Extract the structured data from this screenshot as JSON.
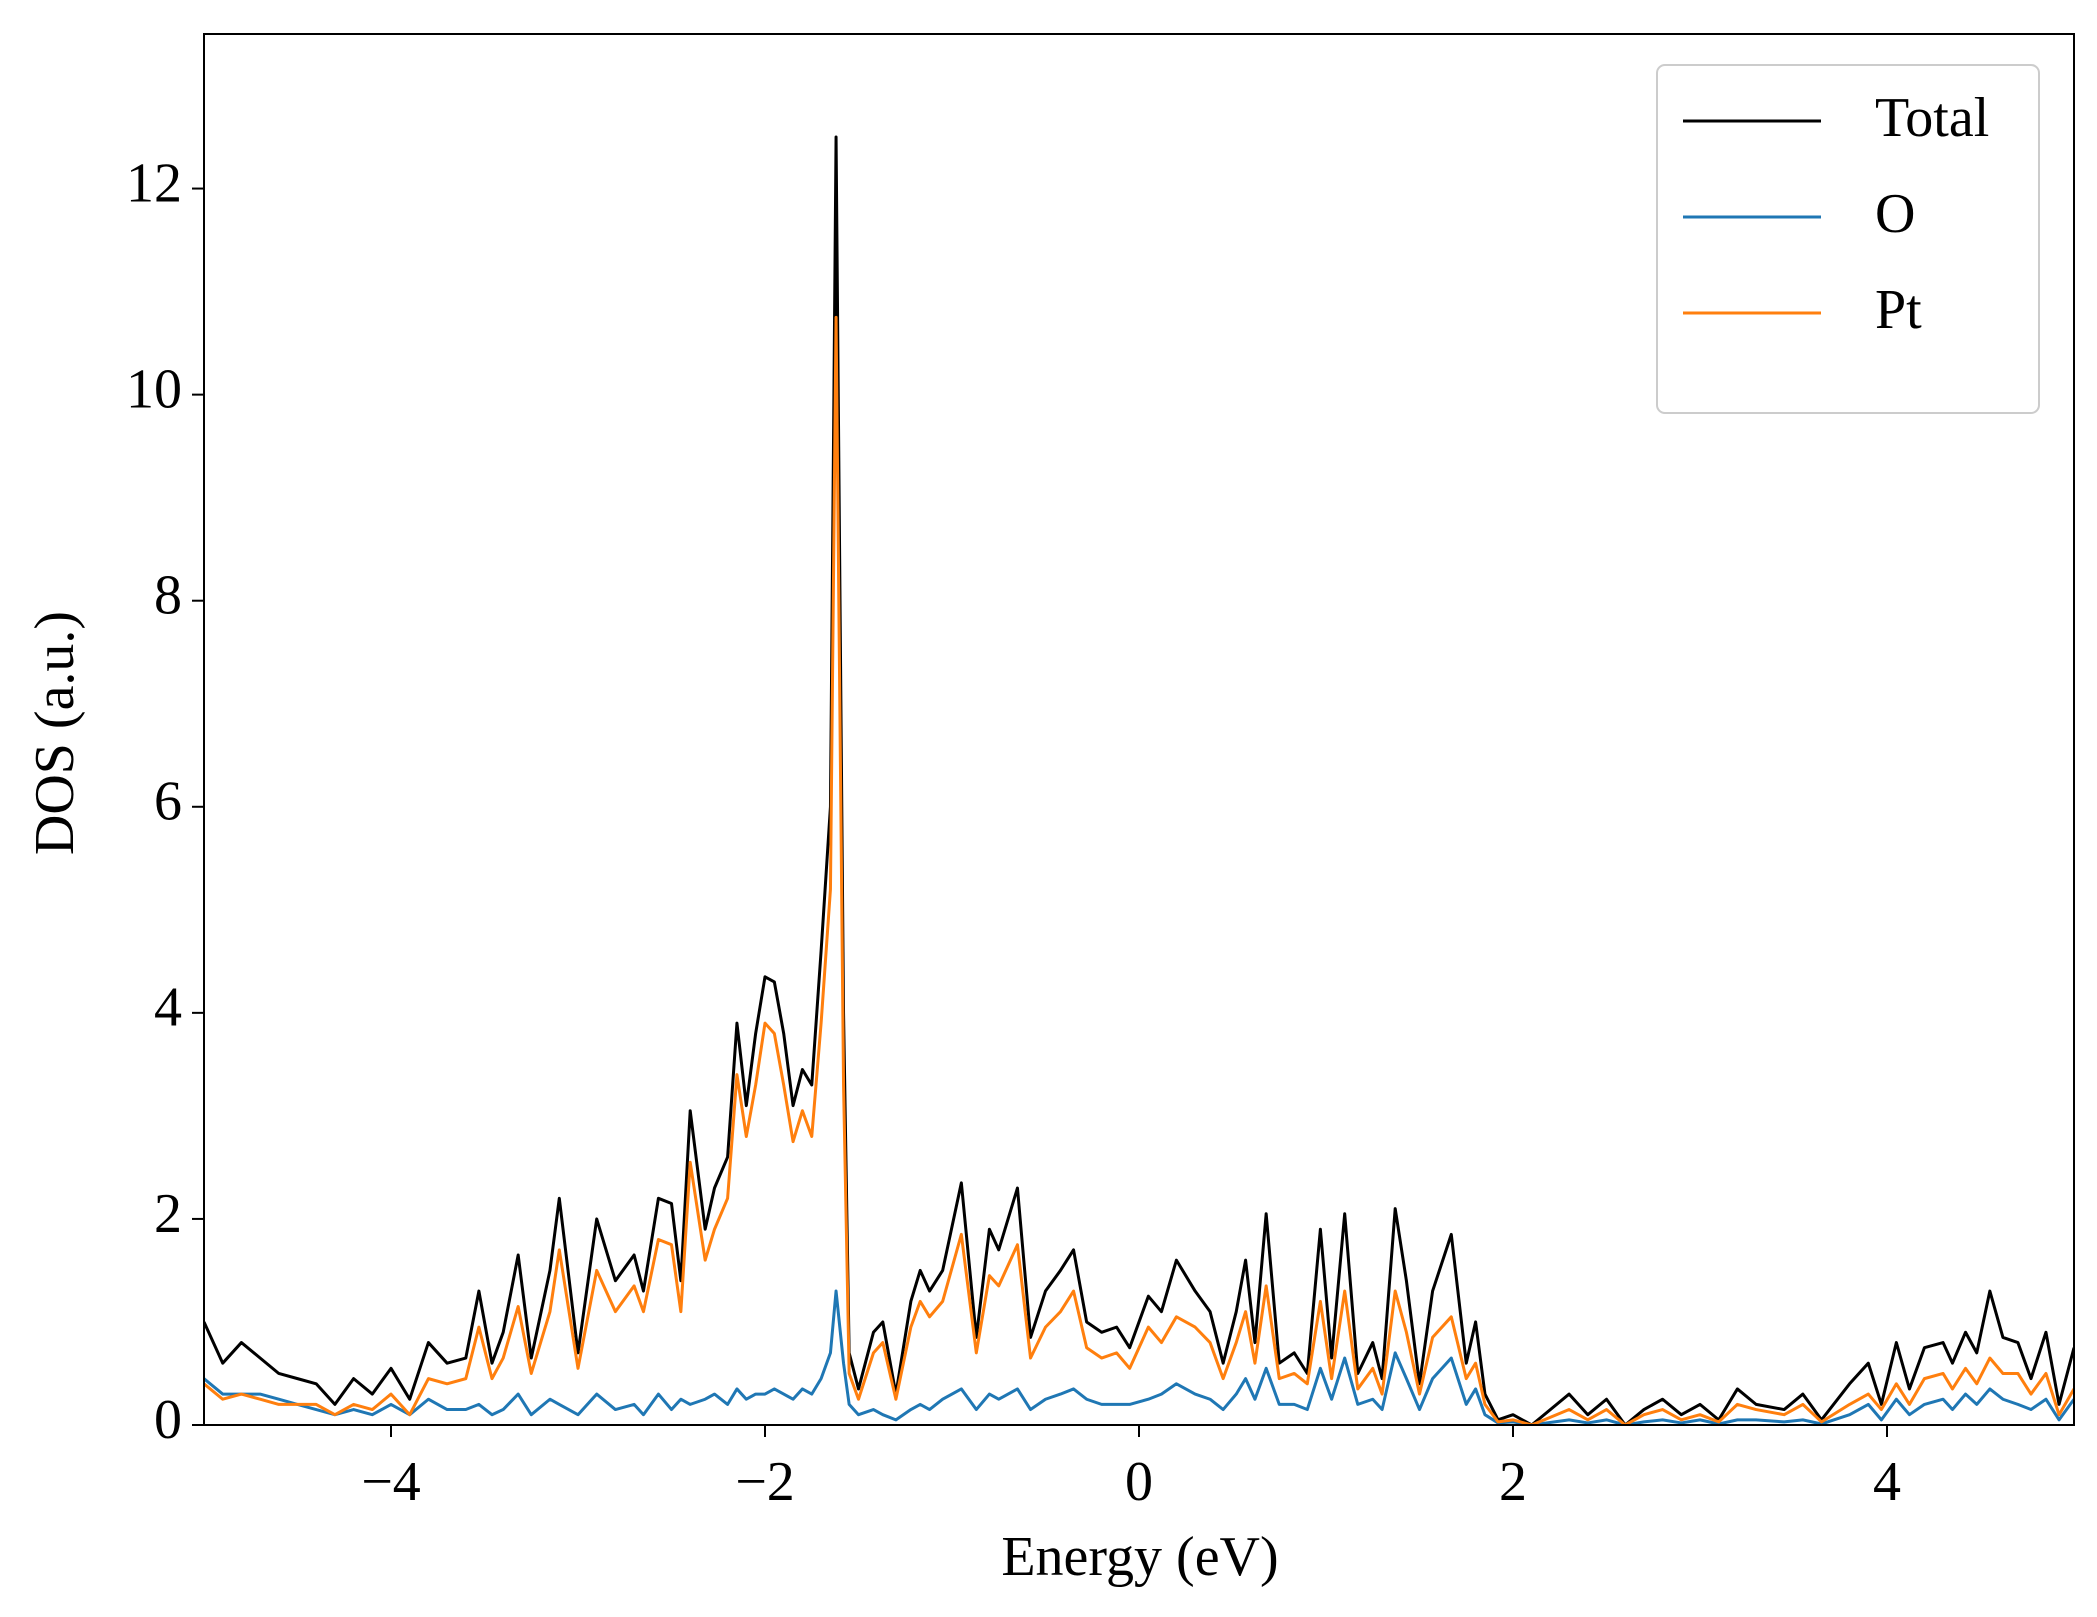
{
  "chart_data": {
    "type": "line",
    "x_label": "Energy (eV)",
    "y_label": "DOS (a.u.)",
    "xlim": [
      -5,
      5
    ],
    "ylim": [
      0,
      13.5
    ],
    "xticks": [
      {
        "value": -4,
        "label": "−4"
      },
      {
        "value": -2,
        "label": "−2"
      },
      0,
      2,
      4
    ],
    "yticks": [
      0,
      2,
      4,
      6,
      8,
      10,
      12
    ],
    "legend": "upper right",
    "grid": false,
    "x": [
      -5,
      -4.9,
      -4.8,
      -4.7,
      -4.6,
      -4.5,
      -4.4,
      -4.3,
      -4.2,
      -4.1,
      -4.0,
      -3.9,
      -3.8,
      -3.7,
      -3.6,
      -3.53,
      -3.46,
      -3.4,
      -3.32,
      -3.25,
      -3.15,
      -3.1,
      -3.0,
      -2.9,
      -2.8,
      -2.7,
      -2.65,
      -2.57,
      -2.5,
      -2.45,
      -2.4,
      -2.32,
      -2.27,
      -2.2,
      -2.15,
      -2.1,
      -2.05,
      -2.0,
      -1.95,
      -1.9,
      -1.85,
      -1.8,
      -1.75,
      -1.7,
      -1.65,
      -1.62,
      -1.58,
      -1.55,
      -1.5,
      -1.42,
      -1.37,
      -1.3,
      -1.22,
      -1.17,
      -1.12,
      -1.05,
      -0.95,
      -0.87,
      -0.8,
      -0.75,
      -0.65,
      -0.58,
      -0.5,
      -0.42,
      -0.35,
      -0.28,
      -0.2,
      -0.12,
      -0.05,
      0.05,
      0.12,
      0.2,
      0.3,
      0.38,
      0.45,
      0.52,
      0.57,
      0.62,
      0.68,
      0.75,
      0.83,
      0.9,
      0.97,
      1.03,
      1.1,
      1.17,
      1.25,
      1.3,
      1.37,
      1.43,
      1.5,
      1.57,
      1.67,
      1.75,
      1.8,
      1.85,
      1.92,
      2.0,
      2.1,
      2.3,
      2.4,
      2.5,
      2.6,
      2.7,
      2.8,
      2.9,
      3.0,
      3.1,
      3.2,
      3.3,
      3.45,
      3.55,
      3.65,
      3.8,
      3.9,
      3.97,
      4.05,
      4.12,
      4.2,
      4.3,
      4.35,
      4.42,
      4.48,
      4.55,
      4.62,
      4.7,
      4.77,
      4.85,
      4.92,
      5.0
    ],
    "series": [
      {
        "name": "Total",
        "color": "#000000",
        "values": [
          1.0,
          0.6,
          0.8,
          0.65,
          0.5,
          0.45,
          0.4,
          0.2,
          0.45,
          0.3,
          0.55,
          0.25,
          0.8,
          0.6,
          0.65,
          1.3,
          0.6,
          0.9,
          1.65,
          0.65,
          1.5,
          2.2,
          0.7,
          2.0,
          1.4,
          1.65,
          1.3,
          2.2,
          2.15,
          1.4,
          3.05,
          1.9,
          2.3,
          2.6,
          3.9,
          3.1,
          3.8,
          4.35,
          4.3,
          3.8,
          3.1,
          3.45,
          3.3,
          4.6,
          6.0,
          12.5,
          4.0,
          0.7,
          0.35,
          0.9,
          1.0,
          0.3,
          1.2,
          1.5,
          1.3,
          1.5,
          2.35,
          0.85,
          1.9,
          1.7,
          2.3,
          0.85,
          1.3,
          1.5,
          1.7,
          1.0,
          0.9,
          0.95,
          0.75,
          1.25,
          1.1,
          1.6,
          1.3,
          1.1,
          0.6,
          1.1,
          1.6,
          0.8,
          2.05,
          0.6,
          0.7,
          0.5,
          1.9,
          0.65,
          2.05,
          0.5,
          0.8,
          0.45,
          2.1,
          1.4,
          0.4,
          1.3,
          1.85,
          0.6,
          1.0,
          0.3,
          0.05,
          0.1,
          0.0,
          0.3,
          0.1,
          0.25,
          0.0,
          0.15,
          0.25,
          0.1,
          0.2,
          0.05,
          0.35,
          0.2,
          0.15,
          0.3,
          0.05,
          0.4,
          0.6,
          0.2,
          0.8,
          0.35,
          0.75,
          0.8,
          0.6,
          0.9,
          0.7,
          1.3,
          0.85,
          0.8,
          0.45,
          0.9,
          0.2,
          0.75
        ]
      },
      {
        "name": "O",
        "color": "#1f77b4",
        "values": [
          0.45,
          0.3,
          0.3,
          0.3,
          0.25,
          0.2,
          0.15,
          0.1,
          0.15,
          0.1,
          0.2,
          0.1,
          0.25,
          0.15,
          0.15,
          0.2,
          0.1,
          0.15,
          0.3,
          0.1,
          0.25,
          0.2,
          0.1,
          0.3,
          0.15,
          0.2,
          0.1,
          0.3,
          0.15,
          0.25,
          0.2,
          0.25,
          0.3,
          0.2,
          0.35,
          0.25,
          0.3,
          0.3,
          0.35,
          0.3,
          0.25,
          0.35,
          0.3,
          0.45,
          0.7,
          1.3,
          0.6,
          0.2,
          0.1,
          0.15,
          0.1,
          0.05,
          0.15,
          0.2,
          0.15,
          0.25,
          0.35,
          0.15,
          0.3,
          0.25,
          0.35,
          0.15,
          0.25,
          0.3,
          0.35,
          0.25,
          0.2,
          0.2,
          0.2,
          0.25,
          0.3,
          0.4,
          0.3,
          0.25,
          0.15,
          0.3,
          0.45,
          0.25,
          0.55,
          0.2,
          0.2,
          0.15,
          0.55,
          0.25,
          0.65,
          0.2,
          0.25,
          0.15,
          0.7,
          0.45,
          0.15,
          0.45,
          0.65,
          0.2,
          0.35,
          0.1,
          0.02,
          0.03,
          0.0,
          0.05,
          0.02,
          0.05,
          0.0,
          0.03,
          0.05,
          0.02,
          0.05,
          0.01,
          0.05,
          0.05,
          0.03,
          0.05,
          0.01,
          0.1,
          0.2,
          0.05,
          0.25,
          0.1,
          0.2,
          0.25,
          0.15,
          0.3,
          0.2,
          0.35,
          0.25,
          0.2,
          0.15,
          0.25,
          0.05,
          0.25
        ]
      },
      {
        "name": "Pt",
        "color": "#ff7f0e",
        "values": [
          0.4,
          0.25,
          0.3,
          0.25,
          0.2,
          0.2,
          0.2,
          0.1,
          0.2,
          0.15,
          0.3,
          0.1,
          0.45,
          0.4,
          0.45,
          0.95,
          0.45,
          0.65,
          1.15,
          0.5,
          1.1,
          1.7,
          0.55,
          1.5,
          1.1,
          1.35,
          1.1,
          1.8,
          1.75,
          1.1,
          2.55,
          1.6,
          1.9,
          2.2,
          3.4,
          2.8,
          3.3,
          3.9,
          3.8,
          3.3,
          2.75,
          3.05,
          2.8,
          3.9,
          5.2,
          10.75,
          3.3,
          0.5,
          0.25,
          0.7,
          0.8,
          0.25,
          0.95,
          1.2,
          1.05,
          1.2,
          1.85,
          0.7,
          1.45,
          1.35,
          1.75,
          0.65,
          0.95,
          1.1,
          1.3,
          0.75,
          0.65,
          0.7,
          0.55,
          0.95,
          0.8,
          1.05,
          0.95,
          0.8,
          0.45,
          0.8,
          1.1,
          0.6,
          1.35,
          0.45,
          0.5,
          0.4,
          1.2,
          0.45,
          1.3,
          0.35,
          0.55,
          0.3,
          1.3,
          0.9,
          0.3,
          0.85,
          1.05,
          0.45,
          0.6,
          0.2,
          0.03,
          0.05,
          0.0,
          0.15,
          0.05,
          0.15,
          0.0,
          0.1,
          0.15,
          0.05,
          0.1,
          0.03,
          0.2,
          0.15,
          0.1,
          0.2,
          0.03,
          0.2,
          0.3,
          0.15,
          0.4,
          0.2,
          0.45,
          0.5,
          0.35,
          0.55,
          0.4,
          0.65,
          0.5,
          0.5,
          0.3,
          0.5,
          0.1,
          0.35
        ]
      }
    ]
  }
}
